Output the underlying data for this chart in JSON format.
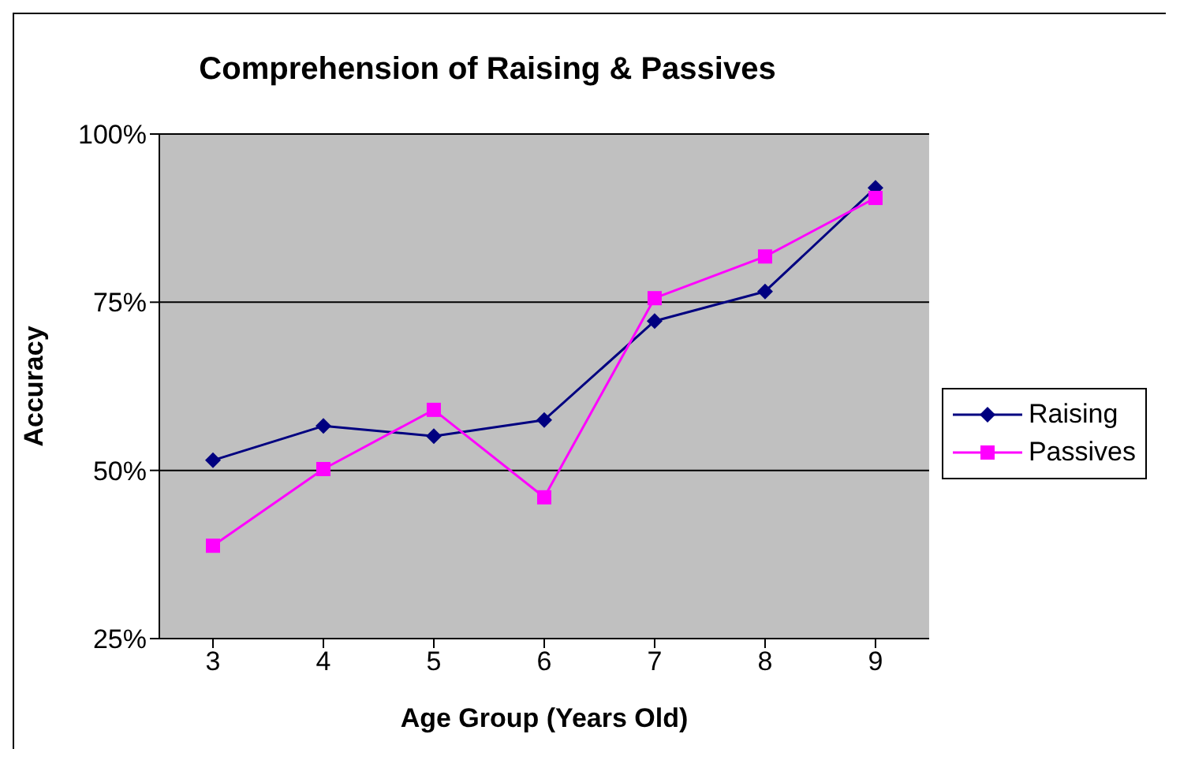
{
  "chart_data": {
    "type": "line",
    "title": "Comprehension of Raising & Passives",
    "xlabel": "Age Group (Years Old)",
    "ylabel": "Accuracy",
    "categories": [
      "3",
      "4",
      "5",
      "6",
      "7",
      "8",
      "9"
    ],
    "series": [
      {
        "name": "Raising",
        "color": "#000080",
        "marker": "diamond",
        "values": [
          51.5,
          56.6,
          55.1,
          57.5,
          72.2,
          76.6,
          92.0
        ]
      },
      {
        "name": "Passives",
        "color": "#ff00ff",
        "marker": "square",
        "values": [
          38.8,
          50.2,
          59.0,
          46.0,
          75.6,
          81.8,
          90.5
        ]
      }
    ],
    "ylim": [
      25,
      100
    ],
    "yticks": [
      {
        "value": 25,
        "label": "25%"
      },
      {
        "value": 50,
        "label": "50%"
      },
      {
        "value": 75,
        "label": "75%"
      },
      {
        "value": 100,
        "label": "100%"
      }
    ],
    "grid": "y",
    "legend": "right"
  }
}
